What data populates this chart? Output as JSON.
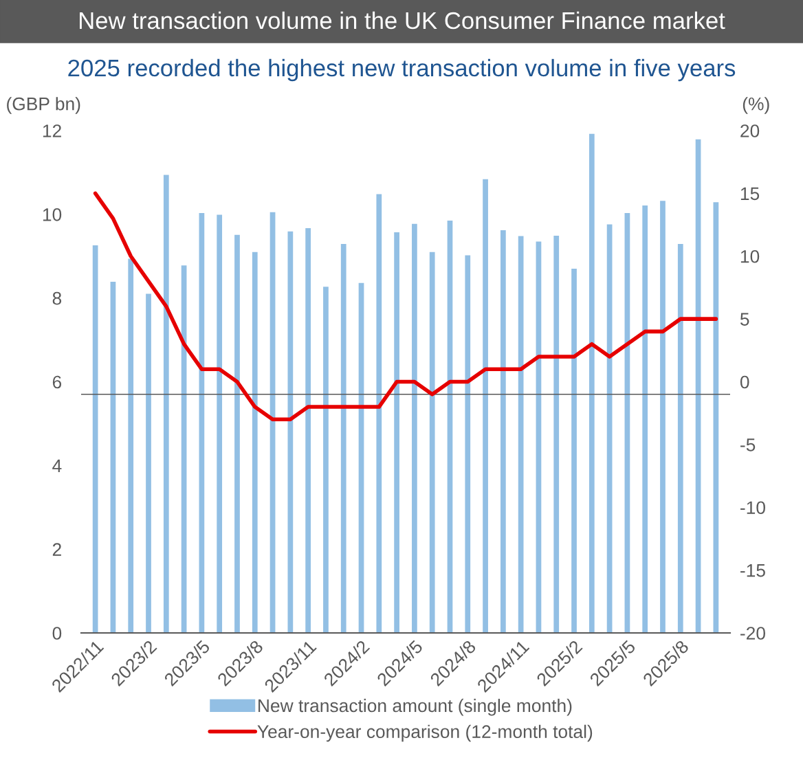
{
  "chart_data": {
    "type": "bar",
    "title": "New transaction volume in the UK Consumer Finance market",
    "subtitle": "2025 recorded the highest new transaction volume in five years",
    "ylabel": "(GBP bn)",
    "y2label": "(%)",
    "categories": [
      "2022/11",
      null,
      null,
      "2023/2",
      null,
      null,
      "2023/5",
      null,
      null,
      "2023/8",
      null,
      null,
      "2023/11",
      null,
      null,
      "2024/2",
      null,
      null,
      "2024/5",
      null,
      null,
      "2024/8",
      null,
      null,
      "2024/11",
      null,
      null,
      "2025/2",
      null,
      null,
      "2025/5",
      null,
      null,
      "2025/8",
      null,
      null
    ],
    "series": [
      {
        "name": "New transaction amount (single month)",
        "color": "#92bfe4",
        "values": [
          9.26,
          8.39,
          8.94,
          8.1,
          10.94,
          8.78,
          10.03,
          9.99,
          9.51,
          9.1,
          10.05,
          9.59,
          9.67,
          8.27,
          9.29,
          8.36,
          10.48,
          9.57,
          9.77,
          9.1,
          9.85,
          9.02,
          10.84,
          9.62,
          9.48,
          9.35,
          9.49,
          8.7,
          11.92,
          9.76,
          10.03,
          10.21,
          10.32,
          9.29,
          11.79,
          10.29
        ]
      },
      {
        "name": "Year-on-year comparison (12-month total)",
        "type": "line",
        "axis": "y2",
        "color": "#e60000",
        "values": [
          15,
          13,
          10,
          8,
          6,
          3,
          1,
          1,
          0,
          -2,
          -3,
          -3,
          -2,
          -2,
          -2,
          -2,
          -2,
          0,
          0,
          -1,
          0,
          0,
          1,
          1,
          1,
          2,
          2,
          2,
          3,
          2,
          3,
          4,
          4,
          5,
          5,
          5
        ]
      }
    ],
    "ylim": [
      0,
      12
    ],
    "yticks": [
      0,
      2,
      4,
      6,
      8,
      10,
      12
    ],
    "y2lim": [
      -20,
      20
    ],
    "y2ticks": [
      -20,
      -15,
      -10,
      -5,
      0,
      5,
      10,
      15,
      20
    ],
    "ref_lines": [
      {
        "axis": "y2",
        "value": -1,
        "color": "#595959"
      }
    ],
    "grid": false,
    "legend": "bottom",
    "line_style": "solid",
    "marker": "none"
  }
}
